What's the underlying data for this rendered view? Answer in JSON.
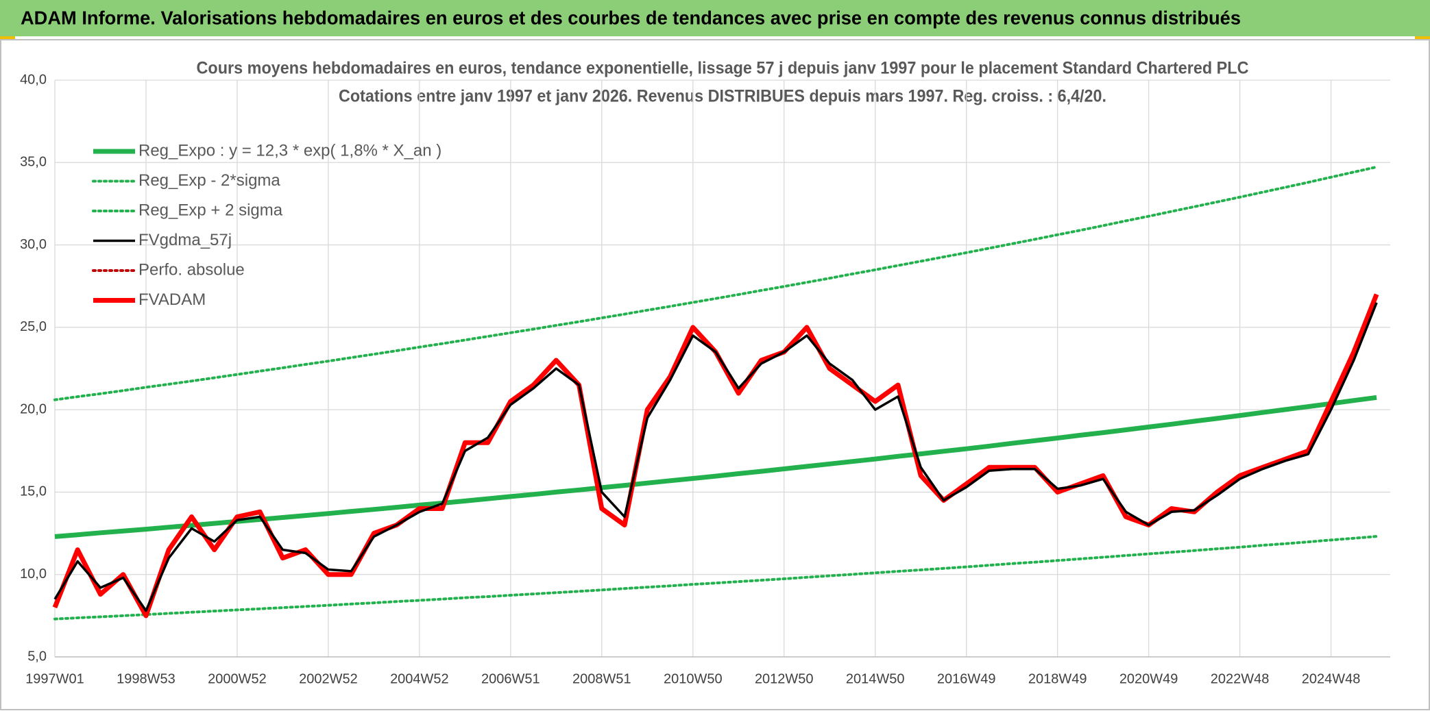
{
  "chart_data": {
    "type": "line",
    "suptitle": "ADAM Informe. Valorisations hebdomadaires en euros et des courbes de tendances avec prise en compte des revenus connus distribués",
    "title": "Cours moyens hebdomadaires en euros, tendance exponentielle, lissage 57 j depuis janv 1997 pour le placement Standard Chartered PLC",
    "subtitle": "Cotations entre janv 1997 et janv 2026. Revenus DISTRIBUES depuis mars 1997. Reg. croiss. : 6,4/20.",
    "categories": [
      "1997W01",
      null,
      null,
      null,
      "1998W53",
      null,
      null,
      null,
      "2000W52",
      null,
      null,
      null,
      "2002W52",
      null,
      null,
      null,
      "2004W52",
      null,
      null,
      null,
      "2006W51",
      null,
      null,
      null,
      "2008W51",
      null,
      null,
      null,
      "2010W50",
      null,
      null,
      null,
      "2012W50",
      null,
      null,
      null,
      "2014W50",
      null,
      null,
      null,
      "2016W49",
      null,
      null,
      null,
      "2018W49",
      null,
      null,
      null,
      "2020W49",
      null,
      null,
      null,
      "2022W48",
      null,
      null,
      null,
      "2024W48",
      null,
      null
    ],
    "ylim": [
      5,
      40
    ],
    "yticks": [
      {
        "value": 5,
        "label": "5,0"
      },
      {
        "value": 10,
        "label": "10,0"
      },
      {
        "value": 15,
        "label": "15,0"
      },
      {
        "value": 20,
        "label": "20,0"
      },
      {
        "value": 25,
        "label": "25,0"
      },
      {
        "value": 30,
        "label": "30,0"
      },
      {
        "value": 35,
        "label": "35,0"
      },
      {
        "value": 40,
        "label": "40,0"
      }
    ],
    "grid": true,
    "legend": "upper left",
    "series": [
      {
        "name": "Reg_Expo : y = 12,3 * exp( 1,8% *  X_an )",
        "color": "#22b14c",
        "style": "thick",
        "values": [
          12.3,
          12.41,
          12.53,
          12.64,
          12.75,
          12.87,
          12.98,
          13.1,
          13.22,
          13.34,
          13.46,
          13.58,
          13.7,
          13.83,
          13.95,
          14.08,
          14.21,
          14.33,
          14.46,
          14.6,
          14.73,
          14.86,
          15.0,
          15.13,
          15.27,
          15.41,
          15.55,
          15.69,
          15.83,
          15.97,
          16.12,
          16.26,
          16.41,
          16.56,
          16.71,
          16.86,
          17.01,
          17.17,
          17.32,
          17.48,
          17.63,
          17.79,
          17.96,
          18.12,
          18.28,
          18.45,
          18.61,
          18.78,
          18.95,
          19.12,
          19.3,
          19.47,
          19.65,
          19.83,
          20.01,
          20.19,
          20.37,
          20.56,
          20.74
        ]
      },
      {
        "name": "Reg_Exp - 2*sigma",
        "color": "#22b14c",
        "style": "dotted",
        "values": [
          7.3,
          7.37,
          7.43,
          7.5,
          7.57,
          7.64,
          7.71,
          7.78,
          7.85,
          7.92,
          7.99,
          8.06,
          8.13,
          8.21,
          8.28,
          8.36,
          8.43,
          8.51,
          8.59,
          8.66,
          8.74,
          8.82,
          8.9,
          8.98,
          9.06,
          9.15,
          9.23,
          9.31,
          9.4,
          9.48,
          9.57,
          9.65,
          9.74,
          9.83,
          9.92,
          10.01,
          10.1,
          10.19,
          10.28,
          10.37,
          10.46,
          10.56,
          10.66,
          10.75,
          10.85,
          10.95,
          11.05,
          11.15,
          11.25,
          11.35,
          11.45,
          11.56,
          11.66,
          11.77,
          11.87,
          11.98,
          12.09,
          12.2,
          12.31
        ]
      },
      {
        "name": "Reg_Exp + 2 sigma",
        "color": "#22b14c",
        "style": "dotted",
        "values": [
          20.6,
          20.79,
          20.97,
          21.16,
          21.36,
          21.55,
          21.74,
          21.94,
          22.14,
          22.34,
          22.54,
          22.75,
          22.95,
          23.16,
          23.37,
          23.58,
          23.8,
          24.01,
          24.23,
          24.45,
          24.67,
          24.89,
          25.12,
          25.34,
          25.57,
          25.8,
          26.04,
          26.27,
          26.51,
          26.75,
          26.99,
          27.24,
          27.48,
          27.73,
          27.98,
          28.24,
          28.49,
          28.75,
          29.01,
          29.27,
          29.53,
          29.8,
          30.07,
          30.34,
          30.62,
          30.89,
          31.17,
          31.46,
          31.74,
          32.03,
          32.32,
          32.61,
          32.9,
          33.2,
          33.5,
          33.8,
          34.11,
          34.42,
          34.73
        ]
      },
      {
        "name": "FVgdma_57j",
        "color": "#000000",
        "style": "solid",
        "values": [
          8.5,
          10.8,
          9.2,
          9.8,
          7.8,
          11.0,
          12.8,
          12.0,
          13.3,
          13.5,
          11.5,
          11.3,
          10.3,
          10.2,
          12.3,
          13.0,
          13.8,
          14.3,
          17.5,
          18.3,
          20.3,
          21.3,
          22.5,
          21.5,
          15.0,
          13.5,
          19.5,
          21.8,
          24.5,
          23.5,
          21.3,
          22.8,
          23.5,
          24.5,
          22.8,
          21.8,
          20.0,
          20.8,
          16.5,
          14.5,
          15.3,
          16.3,
          16.4,
          16.4,
          15.2,
          15.4,
          15.8,
          13.8,
          13.0,
          13.8,
          13.9,
          14.8,
          15.8,
          16.4,
          16.9,
          17.3,
          20.0,
          23.0,
          26.5
        ]
      },
      {
        "name": "Perfo. absolue",
        "color": "#c00000",
        "style": "dotted",
        "values": [
          null,
          null,
          null,
          null,
          null,
          null,
          null,
          null,
          null,
          null,
          null,
          null,
          null,
          null,
          null,
          null,
          null,
          null,
          null,
          null,
          null,
          null,
          null,
          null,
          null,
          null,
          null,
          null,
          null,
          null,
          null,
          null,
          null,
          null,
          null,
          null,
          null,
          null,
          null,
          null,
          null,
          null,
          null,
          null,
          null,
          null,
          null,
          null,
          null,
          null,
          null,
          null,
          null,
          null,
          null,
          null,
          null,
          null,
          null
        ]
      },
      {
        "name": "FVADAM",
        "color": "#ff0000",
        "style": "thick",
        "values": [
          8.0,
          11.5,
          8.8,
          10.0,
          7.5,
          11.5,
          13.5,
          11.5,
          13.5,
          13.8,
          11.0,
          11.5,
          10.0,
          10.0,
          12.5,
          13.0,
          14.0,
          14.0,
          18.0,
          18.0,
          20.5,
          21.5,
          23.0,
          21.5,
          14.0,
          13.0,
          20.0,
          22.0,
          25.0,
          23.5,
          21.0,
          23.0,
          23.5,
          25.0,
          22.5,
          21.5,
          20.5,
          21.5,
          16.0,
          14.5,
          15.5,
          16.5,
          16.5,
          16.5,
          15.0,
          15.5,
          16.0,
          13.5,
          13.0,
          14.0,
          13.8,
          15.0,
          16.0,
          16.5,
          17.0,
          17.5,
          20.5,
          23.5,
          27.0
        ]
      }
    ]
  }
}
